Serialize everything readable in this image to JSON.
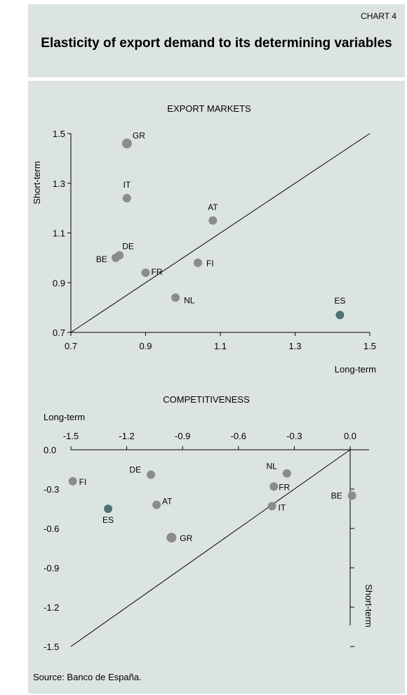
{
  "header": {
    "chart_number": "CHART 4",
    "title": "Elasticity of export demand to its determining variables"
  },
  "source": "Source: Banco de España.",
  "colors": {
    "point": "#8c8c8c",
    "highlight": "#4d7276",
    "panel_bg": "#dce4e1"
  },
  "chart_data": [
    {
      "type": "scatter",
      "title": "EXPORT MARKETS",
      "xlabel": "Long-term",
      "ylabel": "Short-term",
      "xlim": [
        0.7,
        1.5
      ],
      "ylim": [
        0.7,
        1.5
      ],
      "xticks": [
        "0.7",
        "0.9",
        "1.1",
        "1.3",
        "1.5"
      ],
      "yticks": [
        "0.7",
        "0.9",
        "1.1",
        "1.3",
        "1.5"
      ],
      "reference_line": "diagonal",
      "points": [
        {
          "label": "GR",
          "x": 0.85,
          "y": 1.46,
          "big": true
        },
        {
          "label": "IT",
          "x": 0.85,
          "y": 1.24
        },
        {
          "label": "AT",
          "x": 1.08,
          "y": 1.15
        },
        {
          "label": "DE",
          "x": 0.83,
          "y": 1.01
        },
        {
          "label": "BE",
          "x": 0.82,
          "y": 1.0
        },
        {
          "label": "FR",
          "x": 0.9,
          "y": 0.94
        },
        {
          "label": "FI",
          "x": 1.04,
          "y": 0.98
        },
        {
          "label": "NL",
          "x": 0.98,
          "y": 0.84
        },
        {
          "label": "ES",
          "x": 1.42,
          "y": 0.77,
          "highlight": true
        }
      ]
    },
    {
      "type": "scatter",
      "title": "COMPETITIVENESS",
      "xlabel": "Long-term",
      "ylabel": "Short-term",
      "xlim": [
        -1.5,
        0.0
      ],
      "ylim": [
        -1.5,
        0.0
      ],
      "xticks": [
        "-1.5",
        "-1.2",
        "-0.9",
        "-0.6",
        "-0.3",
        "0.0"
      ],
      "yticks": [
        "0.0",
        "-0.3",
        "-0.6",
        "-0.9",
        "-1.2",
        "-1.5"
      ],
      "reference_line": "diagonal",
      "points": [
        {
          "label": "FI",
          "x": -1.49,
          "y": -0.24
        },
        {
          "label": "DE",
          "x": -1.07,
          "y": -0.19
        },
        {
          "label": "AT",
          "x": -1.04,
          "y": -0.42
        },
        {
          "label": "ES",
          "x": -1.3,
          "y": -0.45,
          "highlight": true
        },
        {
          "label": "GR",
          "x": -0.96,
          "y": -0.67,
          "big": true
        },
        {
          "label": "NL",
          "x": -0.34,
          "y": -0.18
        },
        {
          "label": "FR",
          "x": -0.41,
          "y": -0.28
        },
        {
          "label": "IT",
          "x": -0.42,
          "y": -0.43
        },
        {
          "label": "BE",
          "x": 0.01,
          "y": -0.35
        }
      ]
    }
  ]
}
